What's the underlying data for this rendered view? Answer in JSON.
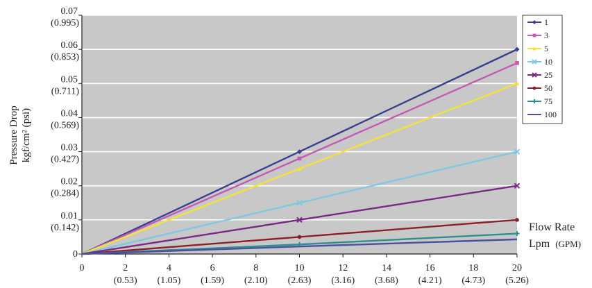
{
  "chart_data": {
    "type": "line",
    "x": [
      0,
      10,
      20
    ],
    "xlim": [
      0,
      20
    ],
    "ylim": [
      0,
      0.07
    ],
    "x_ticks": [
      0,
      2,
      4,
      6,
      8,
      10,
      12,
      14,
      16,
      18,
      20
    ],
    "x_tick_labels": [
      "0",
      "2",
      "4",
      "6",
      "8",
      "10",
      "12",
      "14",
      "16",
      "18",
      "20"
    ],
    "x_tick_sublabels": [
      "",
      "(0.53)",
      "(1.05)",
      "(1.59)",
      "(2.10)",
      "(2.63)",
      "(3.16)",
      "(3.68)",
      "(4.21)",
      "(4.73)",
      "(5.26)"
    ],
    "y_ticks": [
      0,
      0.01,
      0.02,
      0.03,
      0.04,
      0.05,
      0.06,
      0.07
    ],
    "y_tick_labels": [
      "0",
      "0.01",
      "0.02",
      "0.03",
      "0.04",
      "0.05",
      "0.06",
      "0.07"
    ],
    "y_tick_sublabels": [
      "",
      "(0.142)",
      "(0.284)",
      "(0.427)",
      "(0.569)",
      "(0.711)",
      "(0.853)",
      "(0.995)"
    ],
    "ylabel_line1": "Pressure Drop",
    "ylabel_line2": "kgf/cm² (psi)",
    "xlabel_line1": "Flow Rate",
    "xlabel_line2_main": "Lpm",
    "xlabel_line2_unit": "(GPM)",
    "grid": true,
    "legend_position": "right",
    "series": [
      {
        "name": "1",
        "values": [
          0,
          0.03,
          0.06
        ],
        "color": "#3a3f8f",
        "marker": "diamond"
      },
      {
        "name": "3",
        "values": [
          0,
          0.028,
          0.056
        ],
        "color": "#c45ab3",
        "marker": "square"
      },
      {
        "name": "5",
        "values": [
          0,
          0.025,
          0.05
        ],
        "color": "#f2e23a",
        "marker": "triangle"
      },
      {
        "name": "10",
        "values": [
          0,
          0.015,
          0.03
        ],
        "color": "#7ec8e3",
        "marker": "x"
      },
      {
        "name": "25",
        "values": [
          0,
          0.01,
          0.02
        ],
        "color": "#7a2a86",
        "marker": "x"
      },
      {
        "name": "50",
        "values": [
          0,
          0.005,
          0.01
        ],
        "color": "#8b1f2a",
        "marker": "circle"
      },
      {
        "name": "75",
        "values": [
          0,
          0.0028,
          0.006
        ],
        "color": "#2f8f8f",
        "marker": "plus"
      },
      {
        "name": "100",
        "values": [
          0,
          0.0022,
          0.0043
        ],
        "color": "#4a4fa0",
        "marker": "none"
      }
    ]
  }
}
